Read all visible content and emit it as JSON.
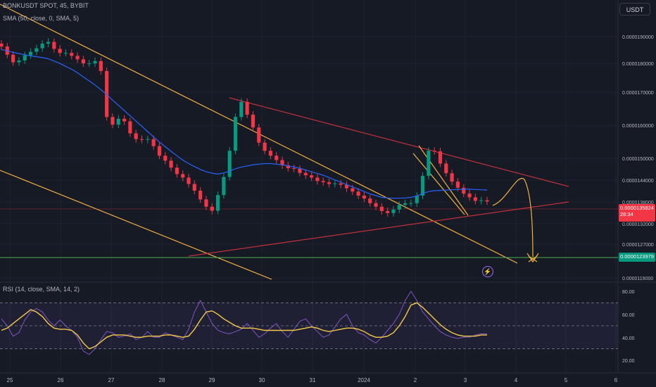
{
  "legend": {
    "symbol_line": "BONKUSDT SPOT, 45, BYBIT",
    "sma_line": "SMA (50, close, 0, SMA, 5)",
    "rsi_line": "RSI (14, close, SMA, 14, 2)"
  },
  "currency_button": "USDT",
  "price_badges": {
    "current_price": "0.0000135824",
    "countdown": "28:34",
    "level_price": "0.0000123979"
  },
  "colors": {
    "background": "#161a25",
    "up": "#089981",
    "down": "#f23645",
    "sma": "#2962ff",
    "rsi": "#7e57c2",
    "rsi_ma": "#f7c948",
    "trendline_orange": "#f5b041",
    "trendline_red": "#c2303a",
    "support_green": "#4caf50"
  },
  "icons": {
    "lightning": "lightning-icon"
  },
  "chart_data": [
    {
      "type": "candlestick",
      "y_tick_labels": [
        "0.0000190000",
        "0.0000180000",
        "0.0000170000",
        "0.0000160000",
        "0.0000150000",
        "0.0000144000",
        "0.0000138000",
        "0.0000132000",
        "0.0000127000",
        "0.0000119000"
      ],
      "x_tick_labels": [
        "25",
        "26",
        "27",
        "28",
        "29",
        "30",
        "31",
        "2024",
        "2",
        "3",
        "4",
        "5",
        "6"
      ],
      "sma_label": "SMA (50, close, 0, SMA, 5)",
      "closes": [
        1.89,
        1.862,
        1.836,
        1.842,
        1.86,
        1.872,
        1.884,
        1.9,
        1.906,
        1.882,
        1.868,
        1.868,
        1.858,
        1.846,
        1.832,
        1.832,
        1.84,
        1.806,
        1.648,
        1.622,
        1.642,
        1.633,
        1.592,
        1.572,
        1.57,
        1.572,
        1.548,
        1.515,
        1.498,
        1.474,
        1.452,
        1.44,
        1.418,
        1.395,
        1.365,
        1.34,
        1.326,
        1.38,
        1.442,
        1.532,
        1.648,
        1.7,
        1.656,
        1.612,
        1.56,
        1.532,
        1.515,
        1.5,
        1.482,
        1.472,
        1.47,
        1.456,
        1.448,
        1.44,
        1.428,
        1.424,
        1.418,
        1.42,
        1.415,
        1.403,
        1.392,
        1.378,
        1.368,
        1.352,
        1.34,
        1.325,
        1.318,
        1.33,
        1.346,
        1.352,
        1.352,
        1.378,
        1.446,
        1.532,
        1.53,
        1.488,
        1.455,
        1.426,
        1.405,
        1.385,
        1.372,
        1.36,
        1.362,
        1.358
      ],
      "sma_values": [
        1.88,
        1.875,
        1.87,
        1.866,
        1.862,
        1.858,
        1.855,
        1.852,
        1.848,
        1.84,
        1.832,
        1.822,
        1.812,
        1.8,
        1.786,
        1.772,
        1.758,
        1.742,
        1.725,
        1.706,
        1.688,
        1.67,
        1.652,
        1.634,
        1.616,
        1.598,
        1.58,
        1.562,
        1.546,
        1.53,
        1.515,
        1.5,
        1.488,
        1.478,
        1.468,
        1.46,
        1.455,
        1.452,
        1.456,
        1.462,
        1.47,
        1.476,
        1.48,
        1.484,
        1.486,
        1.488,
        1.488,
        1.486,
        1.484,
        1.48,
        1.476,
        1.472,
        1.466,
        1.46,
        1.454,
        1.448,
        1.44,
        1.432,
        1.424,
        1.416,
        1.408,
        1.4,
        1.392,
        1.384,
        1.378,
        1.372,
        1.37,
        1.369,
        1.369,
        1.37,
        1.372,
        1.377,
        1.385,
        1.392,
        1.395,
        1.396,
        1.397,
        1.398,
        1.399,
        1.4,
        1.4,
        1.399,
        1.398,
        1.397
      ],
      "price_scale": "x 0.00001 USDT",
      "annotations": {
        "current_price": "0.0000135824",
        "countdown": "28:34",
        "support_level": "0.0000123979"
      }
    },
    {
      "type": "line",
      "title": "RSI (14, close, SMA, 14, 2)",
      "y_tick_labels": [
        "80.00",
        "60.00",
        "40.00",
        "20.00"
      ],
      "ylim": [
        15,
        85
      ],
      "bands": [
        70,
        30
      ],
      "series": [
        {
          "name": "RSI",
          "values": [
            56,
            50,
            41,
            44,
            55,
            62,
            65,
            62,
            55,
            50,
            55,
            50,
            46,
            40,
            28,
            25,
            30,
            38,
            45,
            44,
            40,
            41,
            43,
            38,
            40,
            45,
            40,
            40,
            44,
            42,
            40,
            38,
            47,
            62,
            72,
            62,
            52,
            46,
            44,
            43,
            45,
            47,
            52,
            46,
            40,
            43,
            48,
            52,
            45,
            40,
            47,
            54,
            56,
            50,
            45,
            40,
            42,
            49,
            56,
            60,
            50,
            44,
            42,
            38,
            35,
            40,
            46,
            52,
            60,
            72,
            80,
            72,
            62,
            56,
            50,
            45,
            42,
            40,
            39,
            40,
            40,
            42,
            43,
            43
          ]
        },
        {
          "name": "RSI-based MA",
          "values": [
            46,
            48,
            52,
            56,
            60,
            64,
            62,
            58,
            52,
            48,
            47,
            47,
            46,
            42,
            35,
            30,
            32,
            36,
            40,
            42,
            42,
            42,
            41,
            40,
            40,
            41,
            41,
            41,
            42,
            42,
            41,
            40,
            41,
            47,
            55,
            62,
            63,
            60,
            56,
            53,
            50,
            48,
            48,
            48,
            47,
            46,
            46,
            46,
            46,
            46,
            46,
            47,
            48,
            49,
            48,
            46,
            45,
            46,
            47,
            48,
            48,
            47,
            45,
            42,
            40,
            40,
            41,
            44,
            50,
            58,
            68,
            70,
            66,
            61,
            56,
            51,
            47,
            44,
            42,
            41,
            41,
            41,
            42,
            42
          ]
        }
      ]
    }
  ]
}
